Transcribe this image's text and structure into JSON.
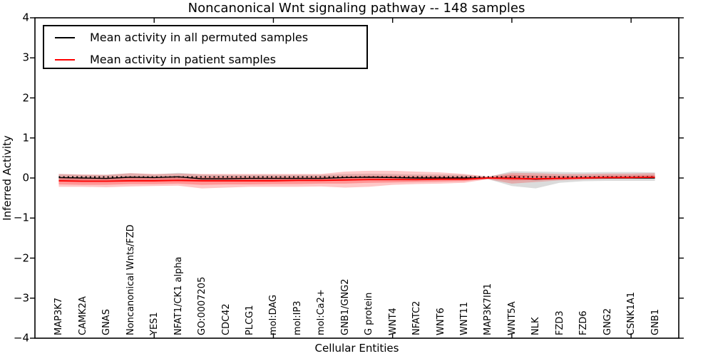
{
  "figure": {
    "title": "Noncanonical Wnt signaling pathway -- 148 samples",
    "xlabel": "Cellular Entities",
    "ylabel": "Inferred Activity"
  },
  "legend": {
    "entries": [
      {
        "label": "Mean activity in all permuted samples",
        "color": "#000000"
      },
      {
        "label": "Mean activity in patient samples",
        "color": "#ff0000"
      }
    ]
  },
  "chart_data": {
    "type": "line",
    "title": "Noncanonical Wnt signaling pathway -- 148 samples",
    "xlabel": "Cellular Entities",
    "ylabel": "Inferred Activity",
    "ylim": [
      -4,
      4
    ],
    "grid": false,
    "legend_position": "upper left",
    "ytick_labels": [
      "4",
      "3",
      "2",
      "1",
      "0",
      "−1",
      "−2",
      "−3",
      "−4"
    ],
    "ytick_values": [
      4,
      3,
      2,
      1,
      0,
      -1,
      -2,
      -3,
      -4
    ],
    "xtick_marked_indices": [
      4,
      9,
      14,
      19,
      24
    ],
    "categories": [
      "MAP3K7",
      "CAMK2A",
      "GNAS",
      "Noncanonical Wnts/FZD",
      "YES1",
      "NFAT1/CK1 alpha",
      "GO:0007205",
      "CDC42",
      "PLCG1",
      "mol:DAG",
      "mol:IP3",
      "mol:Ca2+",
      "GNB1/GNG2",
      "G protein",
      "WNT4",
      "NFATC2",
      "WNT6",
      "WNT11",
      "MAP3K7IP1",
      "WNT5A",
      "NLK",
      "FZD3",
      "FZD6",
      "GNG2",
      "CSNK1A1",
      "GNB1"
    ],
    "series": [
      {
        "name": "Mean activity in all permuted samples",
        "color": "#000000",
        "style": "solid",
        "width": 1.4,
        "values": [
          0.01,
          0.0,
          -0.01,
          0.02,
          0.01,
          0.03,
          -0.02,
          -0.02,
          -0.01,
          -0.01,
          -0.01,
          -0.01,
          0.01,
          0.02,
          0.01,
          0.0,
          0.0,
          0.0,
          0.0,
          0.0,
          -0.03,
          -0.01,
          0.0,
          0.0,
          0.0,
          0.0
        ]
      },
      {
        "name": "Mean activity in patient samples",
        "color": "#ff0000",
        "style": "solid",
        "width": 1.8,
        "values": [
          -0.07,
          -0.08,
          -0.08,
          -0.07,
          -0.07,
          -0.06,
          -0.07,
          -0.07,
          -0.07,
          -0.07,
          -0.06,
          -0.06,
          -0.05,
          -0.04,
          -0.04,
          -0.04,
          -0.03,
          -0.03,
          0.0,
          -0.01,
          -0.02,
          -0.01,
          0.0,
          0.01,
          0.01,
          0.02
        ]
      }
    ],
    "zero_line": {
      "value": 0,
      "color": "#000000",
      "style": "dotted"
    },
    "bands": [
      {
        "name": "permuted-samples-range",
        "color": "#000000",
        "opacity": 0.14,
        "low": [
          -0.08,
          -0.07,
          -0.07,
          -0.06,
          -0.06,
          -0.05,
          -0.07,
          -0.07,
          -0.06,
          -0.06,
          -0.06,
          -0.06,
          -0.05,
          -0.05,
          -0.05,
          -0.06,
          -0.05,
          -0.05,
          -0.03,
          -0.2,
          -0.26,
          -0.12,
          -0.08,
          -0.07,
          -0.07,
          -0.07
        ],
        "high": [
          0.1,
          0.08,
          0.08,
          0.12,
          0.09,
          0.13,
          0.09,
          0.08,
          0.08,
          0.08,
          0.08,
          0.08,
          0.1,
          0.11,
          0.1,
          0.09,
          0.09,
          0.08,
          0.03,
          0.17,
          0.16,
          0.15,
          0.14,
          0.15,
          0.15,
          0.14
        ]
      },
      {
        "name": "patient-samples-range-outer",
        "color": "#ff0000",
        "opacity": 0.22,
        "low": [
          -0.22,
          -0.22,
          -0.23,
          -0.21,
          -0.2,
          -0.19,
          -0.26,
          -0.24,
          -0.22,
          -0.22,
          -0.22,
          -0.21,
          -0.24,
          -0.22,
          -0.17,
          -0.15,
          -0.14,
          -0.12,
          -0.03,
          -0.14,
          -0.1,
          -0.06,
          -0.04,
          -0.02,
          -0.01,
          -0.01
        ],
        "high": [
          0.1,
          0.09,
          0.08,
          0.12,
          0.1,
          0.11,
          0.1,
          0.1,
          0.1,
          0.1,
          0.1,
          0.1,
          0.16,
          0.18,
          0.18,
          0.16,
          0.14,
          0.1,
          0.04,
          0.13,
          0.12,
          0.1,
          0.1,
          0.11,
          0.11,
          0.12
        ]
      },
      {
        "name": "patient-samples-range-inner",
        "color": "#ff0000",
        "opacity": 0.25,
        "low": [
          -0.16,
          -0.17,
          -0.17,
          -0.15,
          -0.15,
          -0.14,
          -0.17,
          -0.16,
          -0.16,
          -0.15,
          -0.15,
          -0.14,
          -0.14,
          -0.12,
          -0.11,
          -0.1,
          -0.09,
          -0.08,
          -0.02,
          -0.06,
          -0.05,
          -0.03,
          -0.02,
          0.0,
          0.0,
          0.01
        ],
        "high": [
          0.02,
          0.01,
          0.01,
          0.03,
          0.02,
          0.03,
          0.02,
          0.02,
          0.02,
          0.02,
          0.02,
          0.02,
          0.04,
          0.05,
          0.05,
          0.04,
          0.04,
          0.03,
          0.02,
          0.08,
          0.06,
          0.05,
          0.05,
          0.06,
          0.06,
          0.07
        ]
      }
    ]
  }
}
